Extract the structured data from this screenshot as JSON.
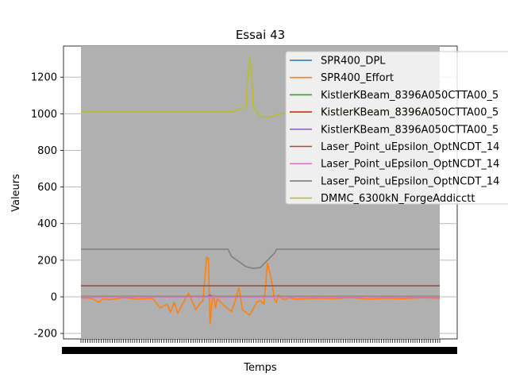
{
  "chart_data": {
    "type": "line",
    "title": "Essai 43",
    "xlabel": "Temps",
    "ylabel": "Valeurs",
    "xlim": [
      0,
      1
    ],
    "ylim": [
      -230,
      1370
    ],
    "yticks": [
      -200,
      0,
      200,
      400,
      600,
      800,
      1000,
      1200
    ],
    "x_tick_labels_overlapping": true,
    "grid": true,
    "legend_position": "top-right",
    "background_band": "#b0b0b0",
    "series": [
      {
        "name": "SPR400_DPL",
        "color": "#1f77b4",
        "x": [
          0,
          1
        ],
        "y": [
          0,
          0
        ]
      },
      {
        "name": "SPR400_Effort",
        "color": "#ff7f0e",
        "x": [
          0.0,
          0.03,
          0.05,
          0.06,
          0.08,
          0.12,
          0.16,
          0.2,
          0.22,
          0.24,
          0.25,
          0.26,
          0.27,
          0.28,
          0.3,
          0.32,
          0.33,
          0.34,
          0.35,
          0.355,
          0.36,
          0.365,
          0.37,
          0.375,
          0.38,
          0.4,
          0.42,
          0.43,
          0.44,
          0.45,
          0.47,
          0.49,
          0.5,
          0.51,
          0.52,
          0.53,
          0.54,
          0.545,
          0.55,
          0.56,
          0.57,
          0.58,
          0.6,
          0.65,
          0.7,
          0.75,
          0.8,
          0.85,
          0.9,
          0.95,
          1.0
        ],
        "y": [
          -5,
          -8,
          -30,
          -10,
          -15,
          -5,
          -12,
          -8,
          -60,
          -40,
          -85,
          -30,
          -90,
          -50,
          20,
          -70,
          -40,
          -20,
          215,
          210,
          -145,
          -20,
          5,
          -60,
          -10,
          -50,
          -80,
          -20,
          50,
          -70,
          -100,
          -30,
          -20,
          -40,
          185,
          100,
          -20,
          -30,
          10,
          -10,
          -15,
          -5,
          -12,
          -8,
          -10,
          -5,
          -12,
          -8,
          -10,
          -5,
          -8
        ]
      },
      {
        "name": "KistlerKBeam_8396A050CTTA00_5",
        "color": "#2ca02c",
        "x": [
          0,
          1
        ],
        "y": [
          2,
          2
        ]
      },
      {
        "name": "KistlerKBeam_8396A050CTTA00_5",
        "color": "#d62728",
        "x": [
          0,
          1
        ],
        "y": [
          1,
          1
        ]
      },
      {
        "name": "KistlerKBeam_8396A050CTTA00_5",
        "color": "#9467bd",
        "x": [
          0,
          0.35,
          0.36,
          0.37,
          1
        ],
        "y": [
          0,
          0,
          10,
          0,
          0
        ]
      },
      {
        "name": "Laser_Point_uEpsilon_OptNCDT_14",
        "color": "#8c564b",
        "x": [
          0,
          1
        ],
        "y": [
          60,
          60
        ]
      },
      {
        "name": "Laser_Point_uEpsilon_OptNCDT_14",
        "color": "#e377c2",
        "x": [
          0,
          1
        ],
        "y": [
          0,
          0
        ]
      },
      {
        "name": "Laser_Point_uEpsilon_OptNCDT_14",
        "color": "#7f7f7f",
        "x": [
          0,
          0.41,
          0.42,
          0.46,
          0.48,
          0.5,
          0.52,
          0.54,
          0.545,
          1
        ],
        "y": [
          260,
          260,
          220,
          165,
          155,
          160,
          200,
          240,
          260,
          260
        ]
      },
      {
        "name": "DMMC_6300kN_ForgeAddicctt",
        "color": "#bcbd22",
        "x": [
          0,
          0.35,
          0.39,
          0.4,
          0.42,
          0.45,
          0.46,
          0.465,
          0.47,
          0.475,
          0.48,
          0.5,
          0.52,
          0.54,
          0.56,
          0.6,
          0.7,
          0.8,
          0.9,
          1.0
        ],
        "y": [
          1010,
          1010,
          1010,
          1010,
          1010,
          1030,
          1040,
          1200,
          1305,
          1250,
          1040,
          985,
          980,
          990,
          1000,
          1005,
          1010,
          1010,
          1010,
          1010
        ]
      }
    ]
  }
}
